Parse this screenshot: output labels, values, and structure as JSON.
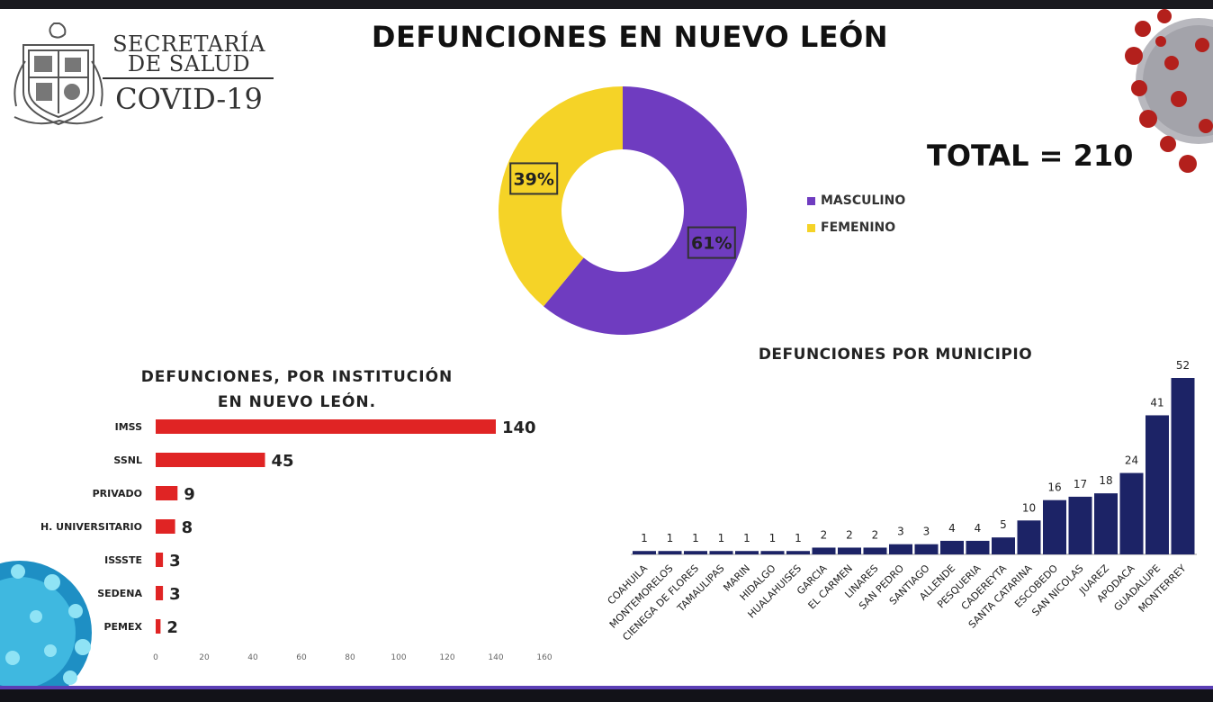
{
  "header": {
    "org_line1": "SECRETARÍA",
    "org_line2": "DE SALUD",
    "org_line3": "COVID-19",
    "title": "DEFUNCIONES EN NUEVO LEÓN",
    "total": "TOTAL = 210"
  },
  "colors": {
    "masculino": "#6f3cc0",
    "femenino": "#f5d327",
    "institution_bar": "#e02424",
    "municipio_bar": "#1c2366",
    "bottom_accent": "#5b3fb5"
  },
  "chart_data": [
    {
      "type": "pie",
      "title": "",
      "categories": [
        "MASCULINO",
        "FEMENINO"
      ],
      "values": [
        61,
        39
      ],
      "value_labels": [
        "61%",
        "39%"
      ],
      "legend_position": "right"
    },
    {
      "type": "bar",
      "orientation": "horizontal",
      "title": "DEFUNCIONES, POR INSTITUCIÓN EN NUEVO LEÓN.",
      "categories": [
        "IMSS",
        "SSNL",
        "PRIVADO",
        "H. UNIVERSITARIO",
        "ISSSTE",
        "SEDENA",
        "PEMEX"
      ],
      "values": [
        140,
        45,
        9,
        8,
        3,
        3,
        2
      ],
      "xlim": [
        0,
        160
      ],
      "xticks": [
        0,
        20,
        40,
        60,
        80,
        100,
        120,
        140,
        160
      ]
    },
    {
      "type": "bar",
      "title": "DEFUNCIONES POR MUNICIPIO",
      "categories": [
        "COAHUILA",
        "MONTEMORELOS",
        "CIENEGA DE FLORES",
        "TAMAULIPAS",
        "MARIN",
        "HIDALGO",
        "HUALAHUISES",
        "GARCIA",
        "EL CARMEN",
        "LINARES",
        "SAN PEDRO",
        "SANTIAGO",
        "ALLENDE",
        "PESQUERIA",
        "CADEREYTA",
        "SANTA CATARINA",
        "ESCOBEDO",
        "SAN NICOLAS",
        "JUAREZ",
        "APODACA",
        "GUADALUPE",
        "MONTERREY"
      ],
      "values": [
        1,
        1,
        1,
        1,
        1,
        1,
        1,
        2,
        2,
        2,
        3,
        3,
        4,
        4,
        5,
        10,
        16,
        17,
        18,
        24,
        41,
        52
      ],
      "ylim": [
        0,
        52
      ]
    }
  ]
}
